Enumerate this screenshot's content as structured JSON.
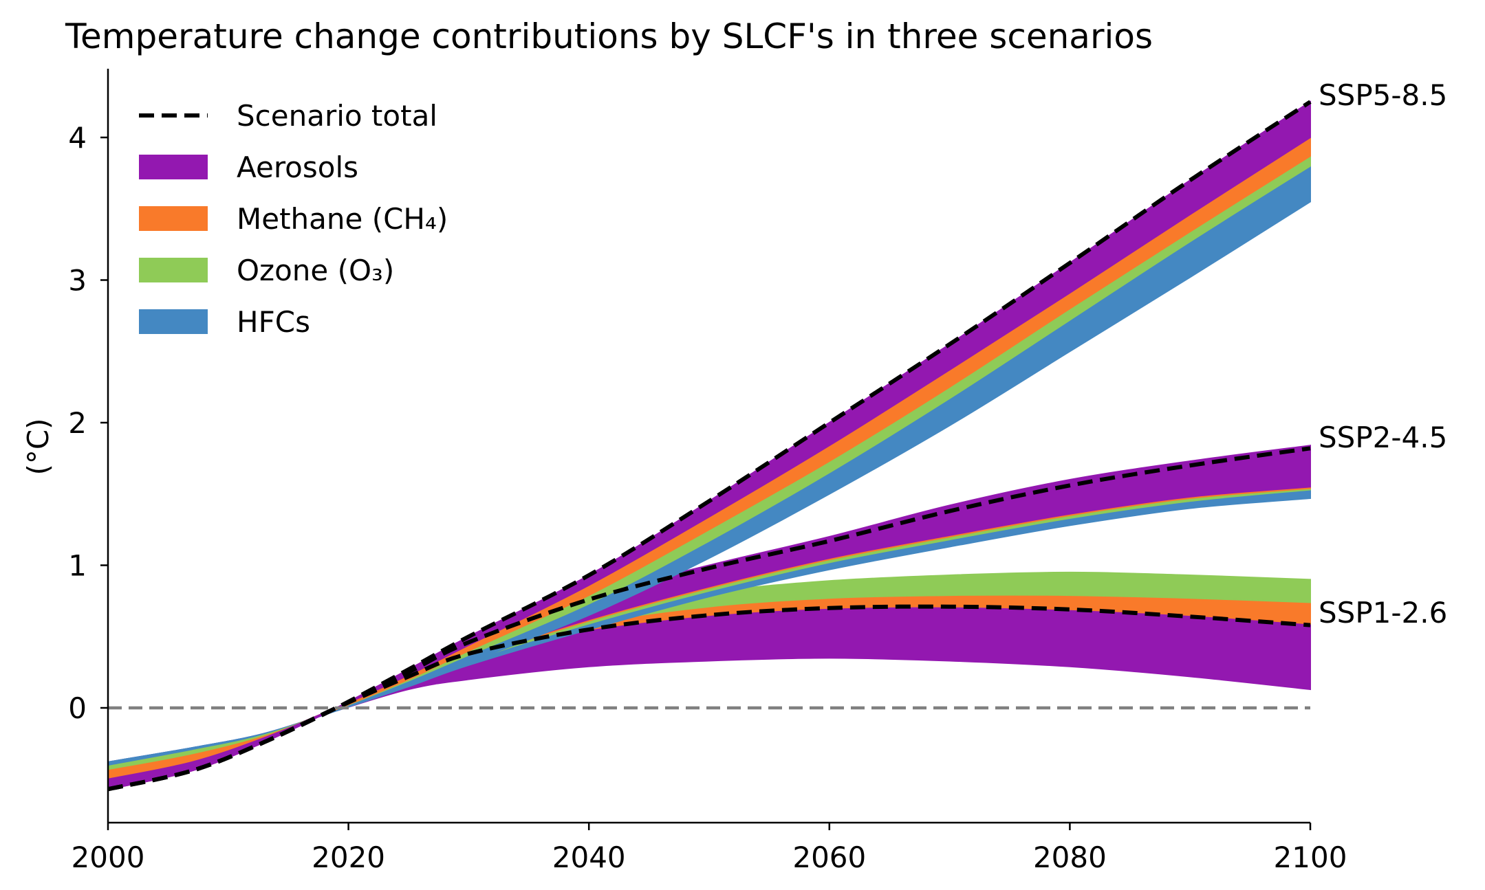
{
  "chart_data": {
    "type": "area",
    "title": "Temperature change contributions by SLCF's in three scenarios",
    "xlabel": "",
    "ylabel": "(°C)",
    "xlim": [
      2000,
      2100
    ],
    "ylim": [
      -0.8,
      4.47
    ],
    "x_ticks": [
      "2000",
      "2020",
      "2040",
      "2060",
      "2080",
      "2100"
    ],
    "y_ticks": [
      "0",
      "1",
      "2",
      "3",
      "4"
    ],
    "grid": false,
    "legend_position": "top-left",
    "legend": [
      {
        "label": "Scenario total",
        "kind": "dashed-line",
        "color": "#000000"
      },
      {
        "label": "Aerosols",
        "kind": "patch",
        "color": "#9318b0"
      },
      {
        "label": "Methane (CH₄)",
        "kind": "patch",
        "color": "#f97a2a"
      },
      {
        "label": "Ozone (O₃)",
        "kind": "patch",
        "color": "#8fcb57"
      },
      {
        "label": "HFCs",
        "kind": "patch",
        "color": "#4488c2"
      }
    ],
    "colors": {
      "aerosols": "#9318b0",
      "methane": "#f97a2a",
      "ozone": "#8fcb57",
      "hfcs": "#4488c2",
      "total": "#000000",
      "zero_line": "#808080"
    },
    "x": [
      2000,
      2007,
      2013,
      2019,
      2025,
      2030,
      2040,
      2050,
      2060,
      2070,
      2080,
      2090,
      2100
    ],
    "scenarios": [
      {
        "name": "SSP5-8.5",
        "hfcs": [
          -0.38,
          -0.28,
          -0.18,
          -0.02,
          0.16,
          0.32,
          0.65,
          1.05,
          1.5,
          1.98,
          2.5,
          3.02,
          3.55
        ],
        "hfcs_top": [
          -0.41,
          -0.3,
          -0.19,
          -0.01,
          0.19,
          0.37,
          0.73,
          1.17,
          1.65,
          2.17,
          2.72,
          3.27,
          3.8
        ],
        "ozone_top": [
          -0.44,
          -0.33,
          -0.2,
          -0.01,
          0.2,
          0.4,
          0.79,
          1.25,
          1.73,
          2.25,
          2.8,
          3.34,
          3.87
        ],
        "methane_top": [
          -0.5,
          -0.38,
          -0.21,
          0.0,
          0.23,
          0.44,
          0.86,
          1.34,
          1.84,
          2.37,
          2.91,
          3.46,
          4.0
        ],
        "aerosols_top": [
          -0.57,
          -0.44,
          -0.24,
          0.0,
          0.27,
          0.5,
          0.93,
          1.45,
          2.0,
          2.55,
          3.12,
          3.7,
          4.25
        ],
        "total": [
          -0.57,
          -0.44,
          -0.24,
          0.0,
          0.27,
          0.5,
          0.93,
          1.45,
          2.0,
          2.55,
          3.12,
          3.7,
          4.25
        ]
      },
      {
        "name": "SSP2-4.5",
        "hfcs": [
          -0.38,
          -0.28,
          -0.18,
          -0.02,
          0.15,
          0.3,
          0.55,
          0.78,
          0.97,
          1.13,
          1.28,
          1.4,
          1.47
        ],
        "hfcs_top": [
          -0.41,
          -0.3,
          -0.19,
          -0.01,
          0.17,
          0.33,
          0.59,
          0.82,
          1.02,
          1.18,
          1.33,
          1.45,
          1.53
        ],
        "ozone_top": [
          -0.44,
          -0.33,
          -0.2,
          -0.01,
          0.18,
          0.34,
          0.61,
          0.84,
          1.04,
          1.2,
          1.35,
          1.47,
          1.54
        ],
        "methane_top": [
          -0.5,
          -0.38,
          -0.21,
          0.0,
          0.19,
          0.35,
          0.62,
          0.85,
          1.05,
          1.21,
          1.36,
          1.48,
          1.55
        ],
        "aerosols_top": [
          -0.57,
          -0.44,
          -0.24,
          0.0,
          0.25,
          0.47,
          0.78,
          1.0,
          1.2,
          1.42,
          1.6,
          1.73,
          1.84
        ],
        "total": [
          -0.57,
          -0.44,
          -0.24,
          0.0,
          0.25,
          0.46,
          0.76,
          0.98,
          1.17,
          1.38,
          1.56,
          1.7,
          1.82
        ]
      },
      {
        "name": "SSP1-2.6",
        "hfcs": [
          -0.38,
          -0.28,
          -0.18,
          -0.02,
          0.13,
          0.2,
          0.29,
          0.33,
          0.35,
          0.33,
          0.29,
          0.22,
          0.13
        ],
        "aerosols_top": [
          -0.57,
          -0.44,
          -0.24,
          0.0,
          0.23,
          0.4,
          0.55,
          0.65,
          0.7,
          0.71,
          0.69,
          0.65,
          0.59
        ],
        "methane_top": [
          -0.5,
          -0.38,
          -0.21,
          0.0,
          0.22,
          0.39,
          0.59,
          0.71,
          0.77,
          0.79,
          0.79,
          0.77,
          0.74
        ],
        "ozone_top": [
          -0.44,
          -0.33,
          -0.2,
          -0.01,
          0.21,
          0.38,
          0.66,
          0.81,
          0.89,
          0.93,
          0.95,
          0.93,
          0.9
        ],
        "total": [
          -0.57,
          -0.44,
          -0.24,
          0.0,
          0.22,
          0.38,
          0.55,
          0.65,
          0.7,
          0.71,
          0.69,
          0.64,
          0.58
        ]
      }
    ]
  }
}
